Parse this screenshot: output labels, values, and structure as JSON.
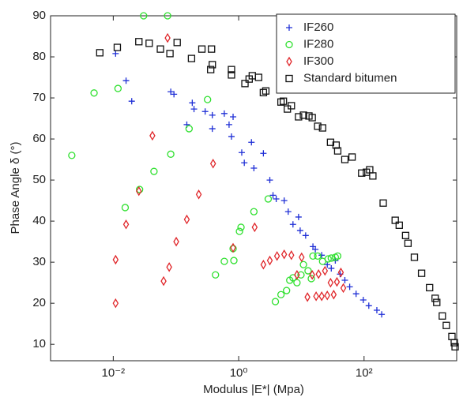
{
  "chart_data": {
    "type": "scatter",
    "x_label": "Modulus |E*| (Mpa)",
    "y_label": "Phase Angle δ (°)",
    "xscale": "log",
    "xlim": [
      0.001,
      3000
    ],
    "ylim": [
      6,
      90
    ],
    "xticks": [
      {
        "value": 0.01,
        "label": "10⁻²"
      },
      {
        "value": 1,
        "label": "10⁰"
      },
      {
        "value": 100,
        "label": "10²"
      }
    ],
    "yticks": [
      10,
      20,
      30,
      40,
      50,
      60,
      70,
      80,
      90
    ],
    "legend": "upper right",
    "series": [
      {
        "name": "IF260",
        "color": "#1f2fd6",
        "marker": "+",
        "x": [
          0.0109,
          0.016,
          0.0197,
          0.0826,
          0.0929,
          0.149,
          0.182,
          0.194,
          0.292,
          0.38,
          0.38,
          0.59,
          0.703,
          0.815,
          0.768,
          1.12,
          1.23,
          1.6,
          1.75,
          2.48,
          3.14,
          3.53,
          3.97,
          5.32,
          6.17,
          7.35,
          9.02,
          9.57,
          11.7,
          15.3,
          16.7,
          21.1,
          25.9,
          30,
          34.8,
          41.5,
          49.4,
          59,
          74.6,
          97.1,
          119,
          160,
          191
        ],
        "values": [
          80.8,
          74.2,
          69.2,
          71.5,
          70.9,
          63.5,
          68.8,
          67.3,
          66.7,
          65.8,
          62.5,
          66.2,
          63.5,
          65.4,
          60.6,
          56.7,
          54.2,
          59.2,
          52.9,
          56.5,
          50.0,
          46.3,
          45.4,
          45.0,
          42.3,
          39.2,
          41.0,
          37.7,
          36.5,
          33.8,
          33.1,
          31.7,
          29.4,
          28.5,
          30.4,
          27.1,
          25.6,
          24.0,
          22.3,
          20.8,
          19.4,
          18.3,
          17.3
        ]
      },
      {
        "name": "IF280",
        "color": "#2ee02e",
        "marker": "o",
        "x": [
          0.00218,
          0.00494,
          0.0119,
          0.0155,
          0.0263,
          0.0305,
          0.0446,
          0.0735,
          0.0826,
          0.162,
          0.319,
          0.427,
          0.59,
          0.815,
          0.839,
          1.03,
          1.09,
          1.75,
          2.96,
          3.85,
          4.73,
          5.81,
          6.53,
          7.35,
          8.51,
          9.86,
          10.8,
          12.8,
          14.4,
          15.3,
          18.2,
          21.8,
          26.7,
          30,
          34.8,
          38
        ],
        "values": [
          56.0,
          71.2,
          72.3,
          43.3,
          47.7,
          90.0,
          52.1,
          90.0,
          56.3,
          62.5,
          69.6,
          26.9,
          30.2,
          33.3,
          30.4,
          37.5,
          38.5,
          42.3,
          45.4,
          20.4,
          22.1,
          23.1,
          25.6,
          26.2,
          25.0,
          26.9,
          29.4,
          27.9,
          26.0,
          31.5,
          31.5,
          30.2,
          30.8,
          31.0,
          31.2,
          31.5
        ]
      },
      {
        "name": "IF300",
        "color": "#e0262a",
        "marker": "d",
        "x": [
          0.0109,
          0.0109,
          0.016,
          0.0256,
          0.0421,
          0.0635,
          0.0735,
          0.078,
          0.101,
          0.149,
          0.231,
          0.391,
          0.815,
          1.8,
          2.48,
          3.14,
          4.09,
          5.32,
          6.93,
          8.51,
          10.1,
          12.5,
          14.9,
          17.2,
          18.8,
          21.1,
          23.8,
          25.9,
          29.2,
          32.8,
          36.9,
          42.7,
          46.7
        ],
        "values": [
          20.0,
          30.6,
          39.2,
          47.3,
          60.8,
          25.4,
          84.6,
          28.8,
          35.0,
          40.4,
          46.5,
          54.0,
          33.5,
          38.5,
          29.4,
          30.4,
          31.5,
          31.9,
          31.7,
          26.9,
          31.2,
          21.5,
          26.9,
          21.7,
          27.1,
          21.7,
          27.9,
          21.9,
          25.0,
          22.1,
          25.2,
          27.5,
          23.7
        ]
      },
      {
        "name": "Standard bitumen",
        "color": "#111111",
        "marker": "s",
        "x": [
          0.0061,
          0.0116,
          0.0256,
          0.0374,
          0.0565,
          0.0802,
          0.1045,
          0.177,
          0.259,
          0.369,
          0.358,
          0.38,
          0.768,
          0.768,
          1.26,
          1.47,
          1.65,
          2.08,
          2.48,
          2.71,
          4.73,
          5.17,
          5.98,
          6.93,
          9.02,
          10.8,
          13.2,
          14.9,
          18.2,
          21.8,
          29.2,
          35.8,
          38,
          49.4,
          64.4,
          91.6,
          109,
          123,
          138,
          202,
          314,
          364,
          460,
          502,
          635,
          827,
          1109,
          1361,
          1443,
          1771,
          2051,
          2518,
          2750,
          2833
        ],
        "values": [
          81.0,
          82.3,
          83.7,
          83.3,
          81.9,
          80.8,
          83.5,
          79.6,
          81.9,
          81.9,
          76.9,
          78.1,
          75.6,
          76.9,
          73.5,
          74.6,
          75.4,
          75.0,
          71.3,
          71.7,
          69.0,
          69.2,
          67.3,
          68.1,
          65.4,
          65.8,
          65.6,
          65.2,
          63.1,
          62.7,
          59.2,
          58.5,
          57.1,
          55.0,
          55.6,
          51.7,
          51.9,
          52.5,
          51.0,
          44.4,
          40.2,
          39.0,
          36.5,
          34.6,
          31.2,
          27.3,
          23.8,
          21.2,
          20.2,
          16.9,
          14.6,
          11.9,
          10.4,
          9.4
        ]
      }
    ]
  }
}
